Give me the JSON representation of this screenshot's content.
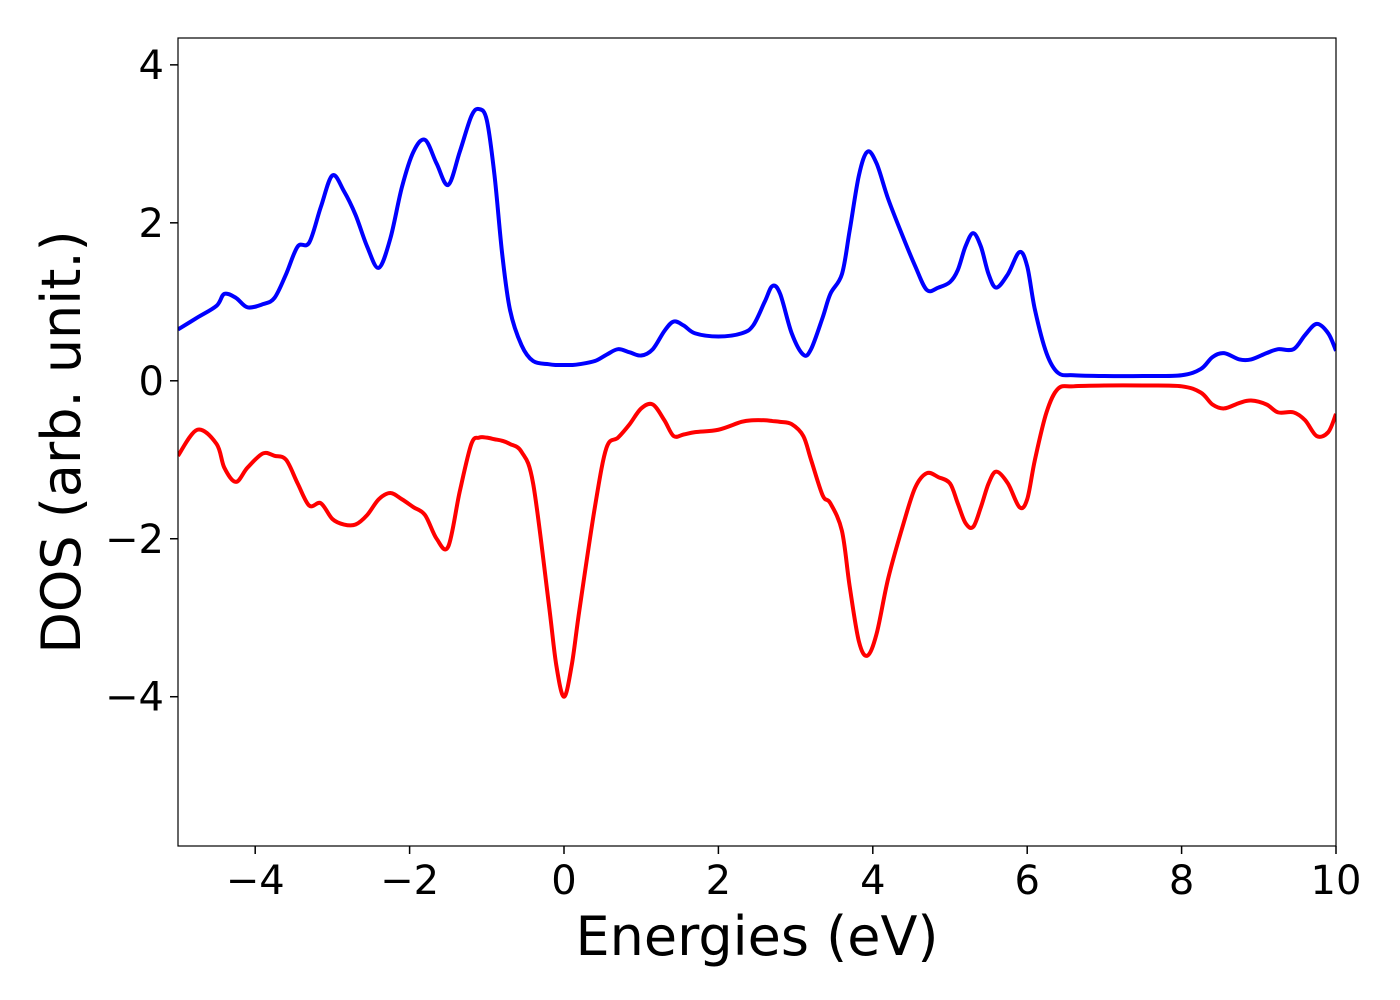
{
  "chart_data": {
    "type": "line",
    "xlabel": "Energies (eV)",
    "ylabel": "DOS (arb. unit.)",
    "x": [
      -5,
      -4.75,
      -4.5,
      -4.4,
      -4.25,
      -4.1,
      -3.9,
      -3.75,
      -3.6,
      -3.45,
      -3.3,
      -3.15,
      -3.0,
      -2.85,
      -2.7,
      -2.55,
      -2.4,
      -2.25,
      -2.1,
      -1.95,
      -1.8,
      -1.65,
      -1.5,
      -1.35,
      -1.2,
      -1.1,
      -1.0,
      -0.9,
      -0.8,
      -0.7,
      -0.55,
      -0.4,
      -0.2,
      -0.1,
      0,
      0.1,
      0.2,
      0.4,
      0.55,
      0.7,
      0.85,
      1.0,
      1.15,
      1.3,
      1.42,
      1.55,
      1.7,
      2.0,
      2.3,
      2.45,
      2.6,
      2.7,
      2.8,
      2.95,
      3.1,
      3.2,
      3.35,
      3.45,
      3.6,
      3.7,
      3.82,
      3.93,
      4.05,
      4.2,
      4.4,
      4.55,
      4.7,
      4.85,
      5.0,
      5.1,
      5.2,
      5.3,
      5.4,
      5.5,
      5.6,
      5.75,
      5.9,
      6.0,
      6.1,
      6.25,
      6.4,
      6.6,
      7.0,
      7.5,
      8.0,
      8.25,
      8.4,
      8.55,
      8.75,
      8.9,
      9.1,
      9.25,
      9.45,
      9.6,
      9.75,
      9.9,
      10
    ],
    "series": [
      {
        "color": "#0000ff",
        "values": [
          0.65,
          0.8,
          0.95,
          1.1,
          1.05,
          0.93,
          0.97,
          1.05,
          1.35,
          1.7,
          1.75,
          2.2,
          2.6,
          2.4,
          2.1,
          1.7,
          1.43,
          1.8,
          2.45,
          2.9,
          3.05,
          2.75,
          2.48,
          2.9,
          3.35,
          3.44,
          3.3,
          2.6,
          1.6,
          0.9,
          0.45,
          0.25,
          0.21,
          0.2,
          0.2,
          0.2,
          0.21,
          0.25,
          0.33,
          0.4,
          0.36,
          0.32,
          0.4,
          0.63,
          0.75,
          0.7,
          0.6,
          0.56,
          0.6,
          0.7,
          1.0,
          1.2,
          1.1,
          0.6,
          0.33,
          0.4,
          0.8,
          1.1,
          1.35,
          1.9,
          2.6,
          2.9,
          2.75,
          2.3,
          1.8,
          1.45,
          1.15,
          1.18,
          1.25,
          1.4,
          1.7,
          1.87,
          1.7,
          1.35,
          1.18,
          1.35,
          1.63,
          1.45,
          0.9,
          0.35,
          0.1,
          0.07,
          0.06,
          0.06,
          0.07,
          0.15,
          0.3,
          0.35,
          0.27,
          0.27,
          0.35,
          0.4,
          0.4,
          0.58,
          0.72,
          0.6,
          0.38
        ]
      },
      {
        "color": "#ff0000",
        "values": [
          -0.95,
          -0.62,
          -0.8,
          -1.1,
          -1.28,
          -1.1,
          -0.92,
          -0.95,
          -1.0,
          -1.3,
          -1.58,
          -1.55,
          -1.75,
          -1.82,
          -1.82,
          -1.7,
          -1.5,
          -1.42,
          -1.5,
          -1.6,
          -1.7,
          -2.0,
          -2.1,
          -1.4,
          -0.8,
          -0.72,
          -0.72,
          -0.74,
          -0.76,
          -0.8,
          -0.9,
          -1.3,
          -2.8,
          -3.6,
          -4.0,
          -3.6,
          -2.9,
          -1.6,
          -0.85,
          -0.72,
          -0.55,
          -0.35,
          -0.3,
          -0.5,
          -0.7,
          -0.68,
          -0.65,
          -0.62,
          -0.52,
          -0.5,
          -0.5,
          -0.51,
          -0.52,
          -0.55,
          -0.7,
          -1.0,
          -1.45,
          -1.55,
          -1.9,
          -2.6,
          -3.3,
          -3.48,
          -3.2,
          -2.5,
          -1.8,
          -1.35,
          -1.17,
          -1.22,
          -1.3,
          -1.55,
          -1.8,
          -1.85,
          -1.6,
          -1.3,
          -1.15,
          -1.3,
          -1.6,
          -1.5,
          -1.0,
          -0.4,
          -0.1,
          -0.07,
          -0.06,
          -0.06,
          -0.07,
          -0.15,
          -0.3,
          -0.35,
          -0.28,
          -0.25,
          -0.3,
          -0.4,
          -0.4,
          -0.5,
          -0.7,
          -0.65,
          -0.42
        ]
      }
    ],
    "xlim": [
      -5,
      10
    ],
    "xticks": [
      {
        "value": -4,
        "label": "−4"
      },
      {
        "value": -2,
        "label": "−2"
      },
      0,
      2,
      4,
      6,
      8,
      10
    ],
    "ylim": [
      -5.89,
      4.34
    ],
    "yticks": [
      {
        "value": -4,
        "label": "−4"
      },
      {
        "value": -2,
        "label": "−2"
      },
      0,
      2,
      4
    ],
    "grid": false
  }
}
